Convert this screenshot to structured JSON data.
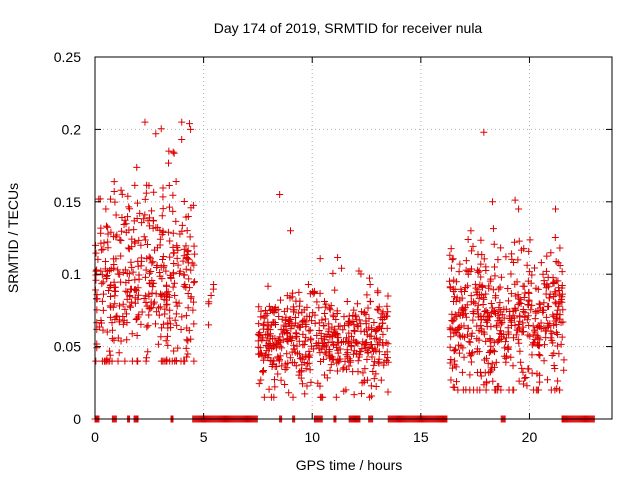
{
  "chart_data": {
    "type": "scatter",
    "title": "Day 174 of 2019, SRMTID for receiver nula",
    "xlabel": "GPS time / hours",
    "ylabel": "SRMTID / TECUs",
    "xlim": [
      0,
      23.8
    ],
    "ylim": [
      0,
      0.25
    ],
    "x_ticks": [
      0,
      5,
      10,
      15,
      20
    ],
    "x_tick_labels": [
      "0",
      "5",
      "10",
      "15",
      "20"
    ],
    "y_ticks": [
      0,
      0.05,
      0.1,
      0.15,
      0.2,
      0.25
    ],
    "y_tick_labels": [
      "0",
      "0.05",
      "0.1",
      "0.15",
      "0.2",
      "0.25"
    ],
    "grid": true,
    "marker": "+",
    "color": "#dd0000",
    "series": [
      {
        "name": "SRMTID",
        "clusters": [
          {
            "t_start": 0.0,
            "t_end": 4.6,
            "center": 0.095,
            "spread": 0.035,
            "min": 0.04,
            "max": 0.205,
            "count": 420
          },
          {
            "t_start": 5.2,
            "t_end": 5.5,
            "center": 0.08,
            "spread": 0.012,
            "min": 0.065,
            "max": 0.1,
            "count": 6
          },
          {
            "t_start": 7.5,
            "t_end": 13.5,
            "center": 0.055,
            "spread": 0.018,
            "min": 0.015,
            "max": 0.155,
            "count": 520
          },
          {
            "t_start": 16.3,
            "t_end": 21.6,
            "center": 0.068,
            "spread": 0.025,
            "min": 0.02,
            "max": 0.198,
            "count": 520
          }
        ],
        "outliers": [
          {
            "x": 0.5,
            "y": 0.145
          },
          {
            "x": 1.2,
            "y": 0.158
          },
          {
            "x": 2.8,
            "y": 0.197
          },
          {
            "x": 3.4,
            "y": 0.185
          },
          {
            "x": 4.35,
            "y": 0.204
          },
          {
            "x": 4.4,
            "y": 0.2
          },
          {
            "x": 8.5,
            "y": 0.155
          },
          {
            "x": 9.0,
            "y": 0.13
          },
          {
            "x": 17.9,
            "y": 0.198
          },
          {
            "x": 18.3,
            "y": 0.15
          },
          {
            "x": 19.5,
            "y": 0.145
          },
          {
            "x": 21.2,
            "y": 0.145
          }
        ],
        "zero_runs": [
          [
            0.0,
            0.2
          ],
          [
            0.8,
            1.0
          ],
          [
            1.5,
            1.6
          ],
          [
            1.8,
            2.0
          ],
          [
            3.5,
            3.6
          ],
          [
            4.5,
            7.5
          ],
          [
            8.5,
            8.6
          ],
          [
            9.1,
            9.2
          ],
          [
            10.1,
            10.5
          ],
          [
            11.0,
            11.1
          ],
          [
            11.7,
            12.2
          ],
          [
            12.6,
            12.8
          ],
          [
            13.5,
            16.2
          ],
          [
            18.7,
            18.9
          ],
          [
            21.5,
            23.0
          ]
        ]
      }
    ]
  }
}
